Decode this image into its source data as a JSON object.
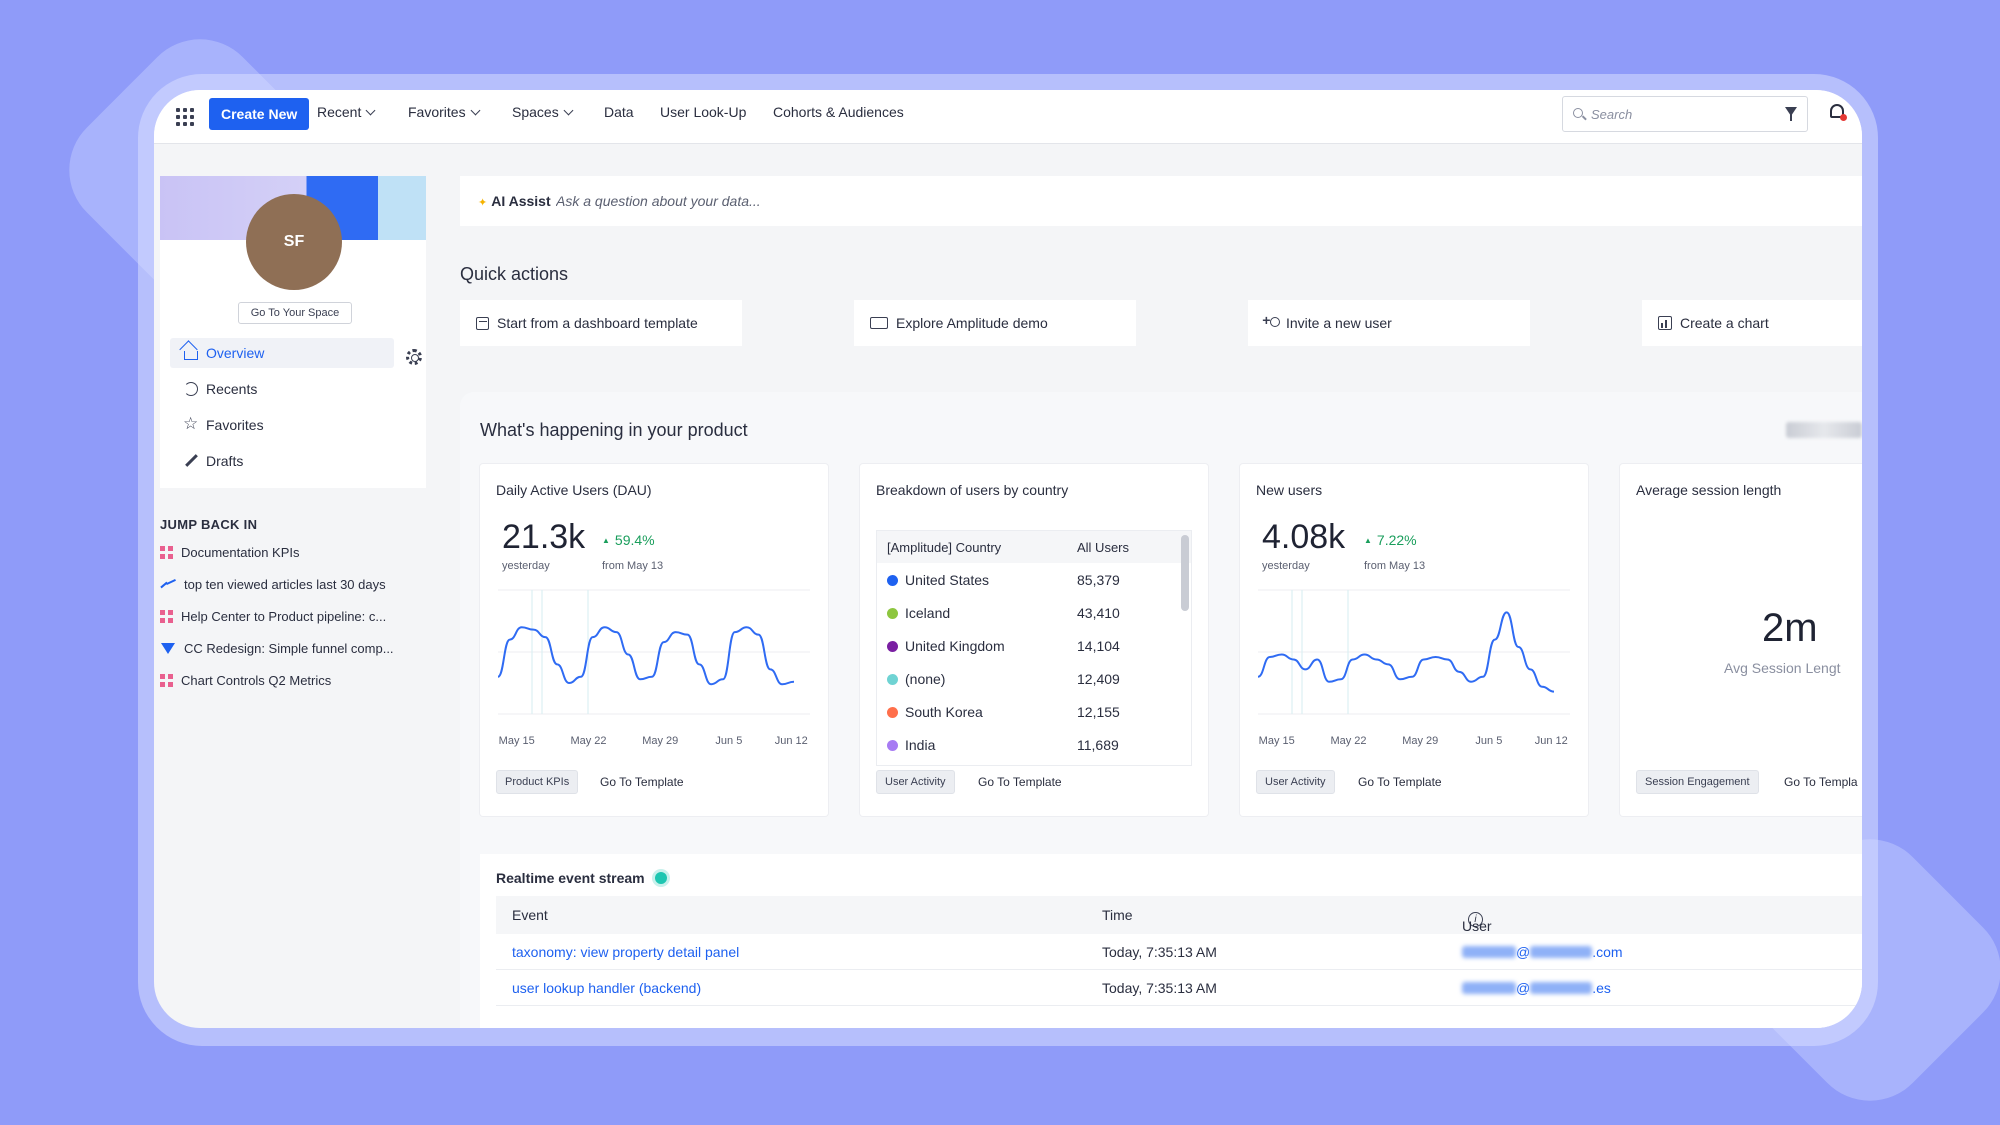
{
  "nav": {
    "create_label": "Create New",
    "items": [
      "Recent",
      "Favorites",
      "Spaces",
      "Data",
      "User Look-Up",
      "Cohorts & Audiences"
    ],
    "search_placeholder": "Search"
  },
  "profile": {
    "initials": "SF",
    "space_button": "Go To Your Space"
  },
  "sidebar": {
    "items": [
      "Overview",
      "Recents",
      "Favorites",
      "Drafts"
    ],
    "jump_title": "JUMP BACK IN",
    "jump_items": [
      "Documentation KPIs",
      "top ten viewed articles last 30 days",
      "Help Center to Product pipeline: c...",
      "CC Redesign: Simple funnel comp...",
      "Chart Controls Q2 Metrics"
    ]
  },
  "ai": {
    "label": "AI Assist",
    "placeholder": "Ask a question about your data..."
  },
  "quick_actions": {
    "title": "Quick actions",
    "items": [
      "Start from a dashboard template",
      "Explore Amplitude demo",
      "Invite a new user",
      "Create a chart"
    ]
  },
  "product": {
    "title": "What's happening in your product"
  },
  "cards": {
    "dau": {
      "title": "Daily Active Users (DAU)",
      "value": "21.3k",
      "sub": "yesterday",
      "delta": "59.4%",
      "from": "from May 13",
      "tag": "Product KPIs",
      "link": "Go To Template"
    },
    "country": {
      "title": "Breakdown of users by country",
      "col1": "[Amplitude] Country",
      "col2": "All Users",
      "rows": [
        {
          "name": "United States",
          "value": "85,379",
          "color": "#1e61f0"
        },
        {
          "name": "Iceland",
          "value": "43,410",
          "color": "#8dc63f"
        },
        {
          "name": "United Kingdom",
          "value": "14,104",
          "color": "#7a1fa2"
        },
        {
          "name": "(none)",
          "value": "12,409",
          "color": "#6fd3d3"
        },
        {
          "name": "South Korea",
          "value": "12,155",
          "color": "#ff6f4b"
        },
        {
          "name": "India",
          "value": "11,689",
          "color": "#a77bf3"
        }
      ],
      "tag": "User Activity",
      "link": "Go To Template"
    },
    "new_users": {
      "title": "New users",
      "value": "4.08k",
      "sub": "yesterday",
      "delta": "7.22%",
      "from": "from May 13",
      "tag": "User Activity",
      "link": "Go To Template"
    },
    "session": {
      "title": "Average session length",
      "value": "2m",
      "sub": "Avg Session Lengt",
      "tag": "Session Engagement",
      "link": "Go To Templa"
    }
  },
  "chart_data": [
    {
      "type": "line",
      "x_ticks": [
        "May 15",
        "May 22",
        "May 29",
        "Jun 5",
        "Jun 12"
      ],
      "values": [
        30,
        60,
        70,
        68,
        62,
        40,
        25,
        30,
        62,
        70,
        66,
        48,
        28,
        30,
        58,
        66,
        64,
        40,
        24,
        28,
        66,
        70,
        64,
        36,
        24,
        26
      ],
      "ylim": [
        0,
        100
      ]
    },
    {
      "type": "line",
      "x_ticks": [
        "May 15",
        "May 22",
        "May 29",
        "Jun 5",
        "Jun 12"
      ],
      "values": [
        30,
        46,
        48,
        44,
        36,
        44,
        26,
        28,
        44,
        48,
        44,
        40,
        28,
        30,
        44,
        46,
        44,
        34,
        26,
        30,
        60,
        82,
        54,
        36,
        22,
        18
      ],
      "ylim": [
        0,
        100
      ]
    }
  ],
  "stream": {
    "title": "Realtime event stream",
    "col_event": "Event",
    "col_time": "Time",
    "col_user": "User",
    "rows": [
      {
        "event": "taxonomy: view property detail panel",
        "time": "Today, 7:35:13 AM",
        "user_tail": ".com"
      },
      {
        "event": "user lookup handler (backend)",
        "time": "Today, 7:35:13 AM",
        "user_tail": ".es"
      }
    ]
  }
}
